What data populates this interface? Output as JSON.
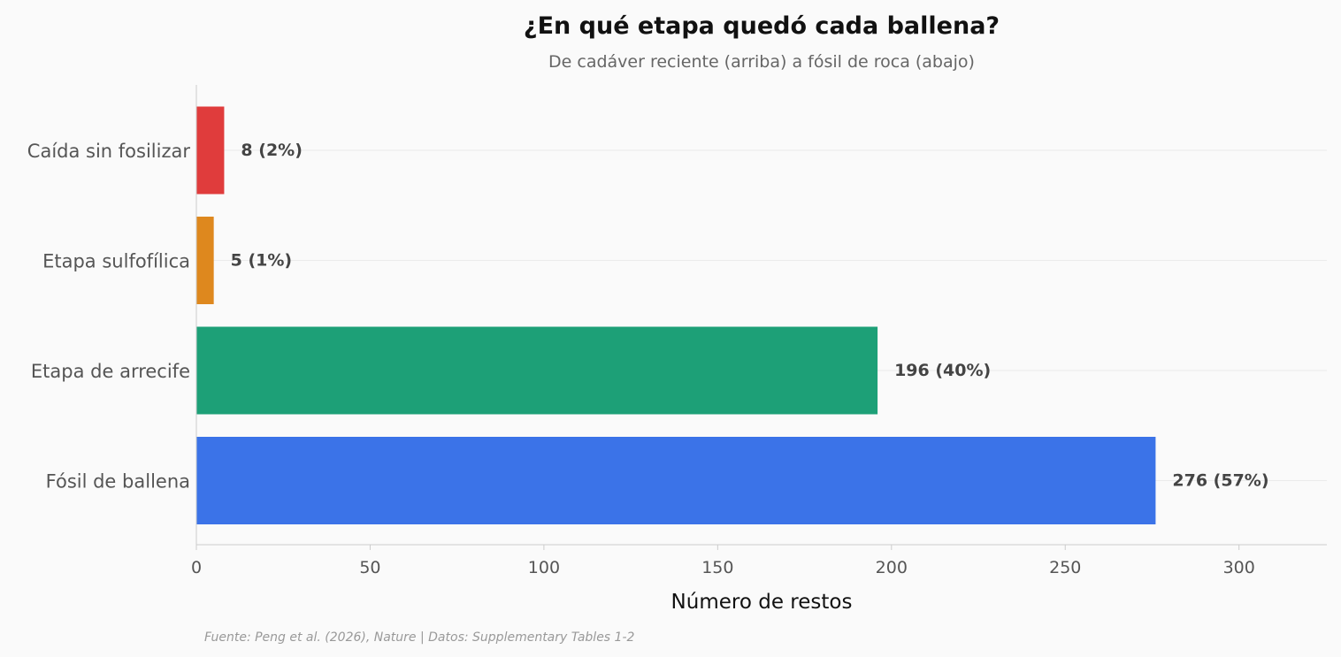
{
  "chart_data": {
    "type": "bar",
    "orientation": "horizontal",
    "title": "¿En qué etapa quedó cada ballena?",
    "subtitle": "De cadáver reciente (arriba) a fósil de roca (abajo)",
    "xlabel": "Número de restos",
    "ylabel": "",
    "xlim": [
      0,
      325
    ],
    "xticks": [
      "0",
      "50",
      "100",
      "150",
      "200",
      "250",
      "300"
    ],
    "grid": "horizontal-light",
    "categories": [
      "Caída sin fosilizar",
      "Etapa sulfofílica",
      "Etapa de arrecife",
      "Fósil de ballena"
    ],
    "values": [
      8,
      5,
      196,
      276
    ],
    "data_labels": [
      "8  (2%)",
      "5  (1%)",
      "196  (40%)",
      "276  (57%)"
    ],
    "colors": [
      "#e03c3c",
      "#de881e",
      "#1da077",
      "#3b73e8"
    ],
    "footnote": "Fuente: Peng et al. (2026), Nature | Datos: Supplementary Tables 1-2"
  }
}
